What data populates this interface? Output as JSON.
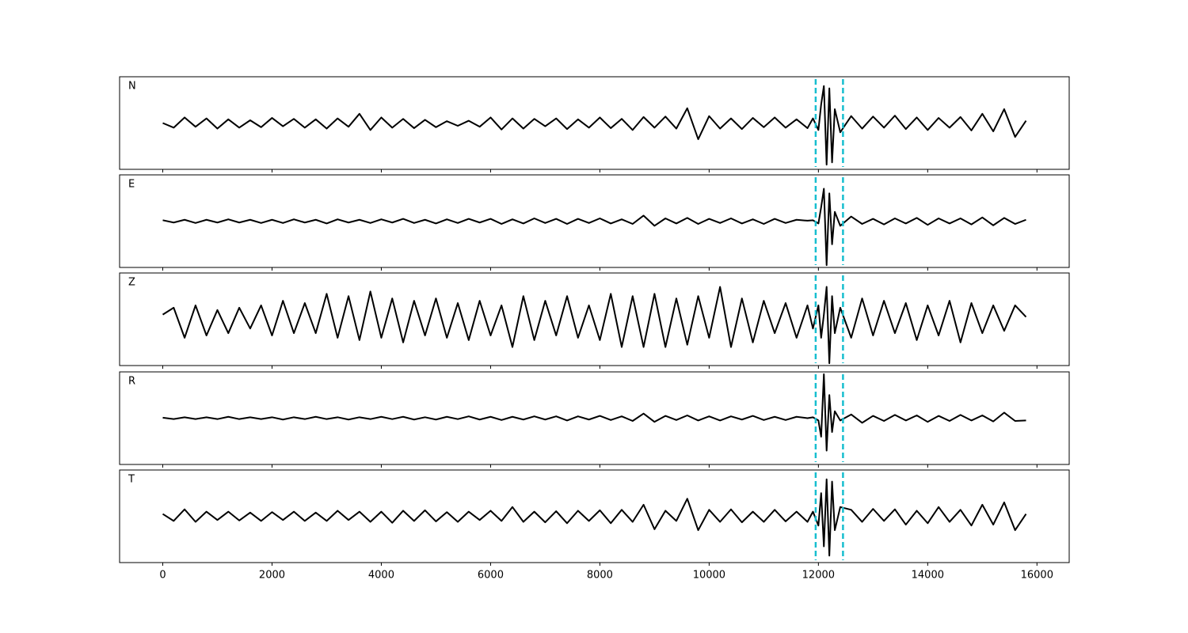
{
  "chart_data": {
    "type": "line",
    "x": [
      0,
      200,
      400,
      600,
      800,
      1000,
      1200,
      1400,
      1600,
      1800,
      2000,
      2200,
      2400,
      2600,
      2800,
      3000,
      3200,
      3400,
      3600,
      3800,
      4000,
      4200,
      4400,
      4600,
      4800,
      5000,
      5200,
      5400,
      5600,
      5800,
      6000,
      6200,
      6400,
      6600,
      6800,
      7000,
      7200,
      7400,
      7600,
      7800,
      8000,
      8200,
      8400,
      8600,
      8800,
      9000,
      9200,
      9400,
      9600,
      9800,
      10000,
      10200,
      10400,
      10600,
      10800,
      11000,
      11200,
      11400,
      11600,
      11800,
      11900,
      12000,
      12050,
      12100,
      12150,
      12200,
      12250,
      12300,
      12400,
      12600,
      12800,
      13000,
      13200,
      13400,
      13600,
      13800,
      14000,
      14200,
      14400,
      14600,
      14800,
      15000,
      15200,
      15400,
      15600,
      15800
    ],
    "series": [
      {
        "name": "N",
        "color": "#000000",
        "values": [
          0,
          -0.1,
          0.12,
          -0.08,
          0.1,
          -0.12,
          0.08,
          -0.1,
          0.06,
          -0.09,
          0.11,
          -0.07,
          0.09,
          -0.1,
          0.08,
          -0.12,
          0.1,
          -0.08,
          0.2,
          -0.15,
          0.12,
          -0.1,
          0.09,
          -0.11,
          0.07,
          -0.09,
          0.04,
          -0.06,
          0.05,
          -0.08,
          0.12,
          -0.14,
          0.1,
          -0.12,
          0.09,
          -0.07,
          0.1,
          -0.13,
          0.08,
          -0.1,
          0.12,
          -0.11,
          0.09,
          -0.15,
          0.13,
          -0.1,
          0.14,
          -0.12,
          0.32,
          -0.35,
          0.15,
          -0.12,
          0.1,
          -0.13,
          0.11,
          -0.09,
          0.12,
          -0.1,
          0.08,
          -0.11,
          0.1,
          -0.15,
          0.4,
          0.8,
          -0.9,
          0.75,
          -0.85,
          0.3,
          -0.2,
          0.15,
          -0.12,
          0.14,
          -0.1,
          0.16,
          -0.13,
          0.12,
          -0.15,
          0.11,
          -0.1,
          0.13,
          -0.16,
          0.2,
          -0.18,
          0.3,
          -0.3,
          0.05
        ]
      },
      {
        "name": "E",
        "color": "#000000",
        "values": [
          0.02,
          -0.03,
          0.03,
          -0.04,
          0.03,
          -0.03,
          0.04,
          -0.03,
          0.03,
          -0.04,
          0.03,
          -0.04,
          0.04,
          -0.03,
          0.03,
          -0.05,
          0.04,
          -0.03,
          0.03,
          -0.04,
          0.04,
          -0.03,
          0.05,
          -0.04,
          0.03,
          -0.05,
          0.04,
          -0.04,
          0.05,
          -0.03,
          0.05,
          -0.06,
          0.04,
          -0.05,
          0.06,
          -0.04,
          0.05,
          -0.06,
          0.05,
          -0.04,
          0.06,
          -0.05,
          0.04,
          -0.06,
          0.12,
          -0.1,
          0.06,
          -0.05,
          0.07,
          -0.06,
          0.05,
          -0.04,
          0.06,
          -0.05,
          0.04,
          -0.06,
          0.05,
          -0.04,
          0.03,
          0.01,
          0.02,
          -0.05,
          0.3,
          0.7,
          -0.95,
          0.6,
          -0.5,
          0.2,
          -0.1,
          0.1,
          -0.06,
          0.05,
          -0.07,
          0.06,
          -0.05,
          0.07,
          -0.08,
          0.06,
          -0.05,
          0.06,
          -0.07,
          0.08,
          -0.09,
          0.07,
          -0.06,
          0.03
        ]
      },
      {
        "name": "Z",
        "color": "#000000",
        "values": [
          0.1,
          0.25,
          -0.4,
          0.3,
          -0.35,
          0.2,
          -0.3,
          0.25,
          -0.2,
          0.3,
          -0.35,
          0.4,
          -0.3,
          0.35,
          -0.3,
          0.55,
          -0.4,
          0.5,
          -0.45,
          0.6,
          -0.4,
          0.45,
          -0.5,
          0.4,
          -0.35,
          0.45,
          -0.4,
          0.35,
          -0.45,
          0.4,
          -0.35,
          0.3,
          -0.6,
          0.5,
          -0.45,
          0.4,
          -0.35,
          0.5,
          -0.4,
          0.3,
          -0.45,
          0.55,
          -0.6,
          0.5,
          -0.6,
          0.55,
          -0.6,
          0.45,
          -0.55,
          0.5,
          -0.4,
          0.7,
          -0.6,
          0.45,
          -0.5,
          0.4,
          -0.3,
          0.35,
          -0.4,
          0.3,
          -0.2,
          0.3,
          -0.4,
          0.1,
          0.7,
          -0.95,
          0.5,
          -0.3,
          0.25,
          -0.4,
          0.45,
          -0.35,
          0.4,
          -0.3,
          0.35,
          -0.45,
          0.3,
          -0.35,
          0.4,
          -0.5,
          0.35,
          -0.3,
          0.3,
          -0.25,
          0.3,
          0.05
        ]
      },
      {
        "name": "R",
        "color": "#000000",
        "values": [
          0.01,
          -0.02,
          0.02,
          -0.02,
          0.02,
          -0.02,
          0.03,
          -0.02,
          0.02,
          -0.02,
          0.02,
          -0.03,
          0.02,
          -0.02,
          0.03,
          -0.02,
          0.02,
          -0.03,
          0.02,
          -0.02,
          0.03,
          -0.02,
          0.03,
          -0.03,
          0.02,
          -0.03,
          0.03,
          -0.02,
          0.04,
          -0.03,
          0.03,
          -0.04,
          0.03,
          -0.03,
          0.04,
          -0.03,
          0.04,
          -0.05,
          0.04,
          -0.03,
          0.05,
          -0.04,
          0.04,
          -0.06,
          0.1,
          -0.08,
          0.05,
          -0.04,
          0.06,
          -0.05,
          0.04,
          -0.05,
          0.04,
          -0.03,
          0.05,
          -0.04,
          0.03,
          -0.04,
          0.03,
          0,
          0.02,
          -0.05,
          -0.4,
          0.95,
          -0.7,
          0.5,
          -0.3,
          0.15,
          -0.05,
          0.08,
          -0.1,
          0.05,
          -0.06,
          0.07,
          -0.05,
          0.06,
          -0.08,
          0.05,
          -0.06,
          0.07,
          -0.05,
          0.06,
          -0.07,
          0.12,
          -0.06,
          -0.05
        ]
      },
      {
        "name": "T",
        "color": "#000000",
        "values": [
          0.05,
          -0.1,
          0.15,
          -0.12,
          0.1,
          -0.08,
          0.1,
          -0.09,
          0.08,
          -0.1,
          0.09,
          -0.08,
          0.1,
          -0.1,
          0.08,
          -0.1,
          0.12,
          -0.08,
          0.1,
          -0.12,
          0.1,
          -0.14,
          0.12,
          -0.1,
          0.13,
          -0.11,
          0.09,
          -0.12,
          0.1,
          -0.08,
          0.12,
          -0.1,
          0.2,
          -0.12,
          0.1,
          -0.13,
          0.11,
          -0.15,
          0.12,
          -0.1,
          0.13,
          -0.15,
          0.14,
          -0.12,
          0.25,
          -0.28,
          0.12,
          -0.1,
          0.38,
          -0.3,
          0.14,
          -0.12,
          0.15,
          -0.13,
          0.1,
          -0.12,
          0.14,
          -0.11,
          0.1,
          -0.12,
          0.1,
          -0.2,
          0.5,
          -0.65,
          0.8,
          -0.85,
          0.75,
          -0.3,
          0.2,
          0.14,
          -0.12,
          0.16,
          -0.1,
          0.15,
          -0.18,
          0.12,
          -0.15,
          0.2,
          -0.12,
          0.14,
          -0.2,
          0.25,
          -0.18,
          0.3,
          -0.3,
          0.05
        ]
      }
    ],
    "markers": {
      "x": [
        11950,
        12450
      ],
      "color": "#17becf"
    },
    "xlim": [
      -790,
      16590
    ],
    "ylim": [
      -1,
      1
    ],
    "xticks": [
      0,
      2000,
      4000,
      6000,
      8000,
      10000,
      12000,
      14000,
      16000
    ]
  }
}
